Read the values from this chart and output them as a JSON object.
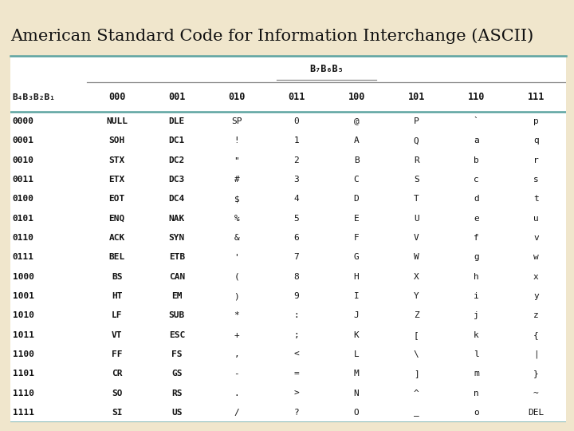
{
  "title": "American Standard Code for Information Interchange (ASCII)",
  "background_color": "#f0e6cc",
  "table_bg": "#ffffff",
  "header1_label": "B₇B₆B₅",
  "header2_label": "B₄B₃B₂B₁",
  "col_headers": [
    "000",
    "001",
    "010",
    "011",
    "100",
    "101",
    "110",
    "111"
  ],
  "row_headers": [
    "0000",
    "0001",
    "0010",
    "0011",
    "0100",
    "0101",
    "0110",
    "0111",
    "1000",
    "1001",
    "1010",
    "1011",
    "1100",
    "1101",
    "1110",
    "1111"
  ],
  "table_data": [
    [
      "NULL",
      "DLE",
      "SP",
      "0",
      "@",
      "P",
      "`",
      "p"
    ],
    [
      "SOH",
      "DC1",
      "!",
      "1",
      "A",
      "Q",
      "a",
      "q"
    ],
    [
      "STX",
      "DC2",
      "\"",
      "2",
      "B",
      "R",
      "b",
      "r"
    ],
    [
      "ETX",
      "DC3",
      "#",
      "3",
      "C",
      "S",
      "c",
      "s"
    ],
    [
      "EOT",
      "DC4",
      "$",
      "4",
      "D",
      "T",
      "d",
      "t"
    ],
    [
      "ENQ",
      "NAK",
      "%",
      "5",
      "E",
      "U",
      "e",
      "u"
    ],
    [
      "ACK",
      "SYN",
      "&",
      "6",
      "F",
      "V",
      "f",
      "v"
    ],
    [
      "BEL",
      "ETB",
      "'",
      "7",
      "G",
      "W",
      "g",
      "w"
    ],
    [
      "BS",
      "CAN",
      "(",
      "8",
      "H",
      "X",
      "h",
      "x"
    ],
    [
      "HT",
      "EM",
      ")",
      "9",
      "I",
      "Y",
      "i",
      "y"
    ],
    [
      "LF",
      "SUB",
      "*",
      ":",
      "J",
      "Z",
      "j",
      "z"
    ],
    [
      "VT",
      "ESC",
      "+",
      ";",
      "K",
      "[",
      "k",
      "{"
    ],
    [
      "FF",
      "FS",
      ",",
      "<",
      "L",
      "\\",
      "l",
      "|"
    ],
    [
      "CR",
      "GS",
      "-",
      "=",
      "M",
      "]",
      "m",
      "}"
    ],
    [
      "SO",
      "RS",
      ".",
      ">",
      "N",
      "^",
      "n",
      "~"
    ],
    [
      "SI",
      "US",
      "/",
      "?",
      "O",
      "_",
      "o",
      "DEL"
    ]
  ],
  "title_fontsize": 15,
  "line_color_thick": "#5ba3a0",
  "line_color_thin": "#888888",
  "text_color": "#111111"
}
